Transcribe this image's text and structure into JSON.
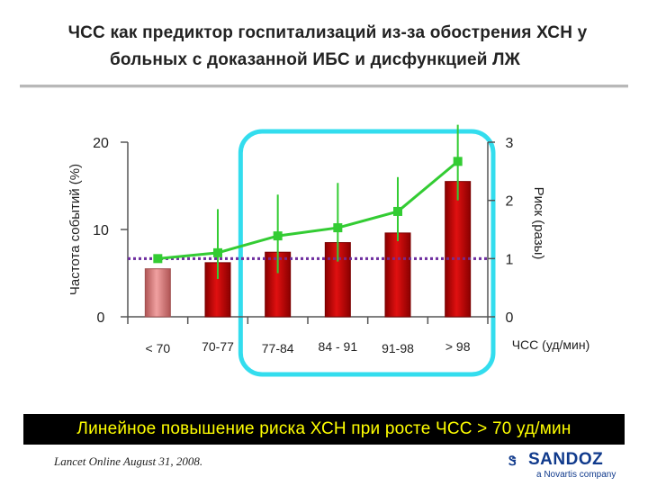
{
  "slide": {
    "title_line1": "ЧСС как предиктор госпитализаций из-за обострения ХСН у",
    "title_line2": "больных с доказанной ИБС и дисфункцией ЛЖ",
    "conclusion": "Линейное повышение риска ХСН при росте ЧСС > 70 уд/мин",
    "citation": "Lancet Online August 31, 2008.",
    "brand_name": "SANDOZ",
    "brand_sub": "a Novartis company",
    "brand_mark": "Ꮥ"
  },
  "chart_data": {
    "type": "bar",
    "xlabel": "ЧСС (уд/мин)",
    "ylabel": "Частота событий (%)",
    "y2label": "Риск (разы)",
    "categories": [
      "< 70",
      "70-77",
      "77-84",
      "84 - 91",
      "91-98",
      "> 98"
    ],
    "ylim": [
      0,
      20
    ],
    "y_ticks": [
      0,
      10,
      20
    ],
    "y2lim": [
      0,
      3
    ],
    "y2_ticks": [
      0,
      1,
      2,
      3
    ],
    "bars": {
      "values": [
        5.5,
        6.2,
        7.4,
        8.5,
        9.6,
        15.5
      ],
      "colors": [
        "#e08b8b",
        "#cc0000",
        "#cc0000",
        "#cc0000",
        "#cc0000",
        "#cc0000"
      ]
    },
    "risk_line": {
      "values": [
        1.0,
        1.1,
        1.39,
        1.53,
        1.81,
        2.67
      ],
      "ci_low": [
        1.0,
        0.65,
        0.75,
        0.95,
        1.3,
        2.0
      ],
      "ci_high": [
        1.0,
        1.85,
        2.1,
        2.3,
        2.4,
        3.3
      ],
      "color": "#33cc33"
    },
    "reference_line": {
      "value": 1.0,
      "color": "#7030a0",
      "style": "dotted"
    },
    "highlight_range": {
      "from_category": "77-84",
      "to_category": "> 98",
      "color": "#33ddee"
    },
    "grid": false
  }
}
